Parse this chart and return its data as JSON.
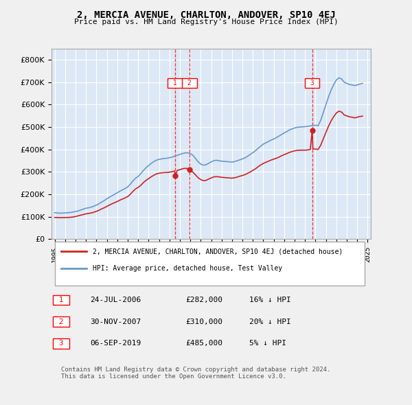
{
  "title": "2, MERCIA AVENUE, CHARLTON, ANDOVER, SP10 4EJ",
  "subtitle": "Price paid vs. HM Land Registry's House Price Index (HPI)",
  "ylabel": "",
  "background_color": "#e8f0f8",
  "plot_bg_color": "#dce8f5",
  "legend_label_red": "2, MERCIA AVENUE, CHARLTON, ANDOVER, SP10 4EJ (detached house)",
  "legend_label_blue": "HPI: Average price, detached house, Test Valley",
  "transactions": [
    {
      "num": 1,
      "date": "24-JUL-2006",
      "price": "£282,000",
      "hpi": "16% ↓ HPI",
      "year": 2006.56
    },
    {
      "num": 2,
      "date": "30-NOV-2007",
      "price": "£310,000",
      "hpi": "20% ↓ HPI",
      "year": 2007.92
    },
    {
      "num": 3,
      "date": "06-SEP-2019",
      "price": "£485,000",
      "hpi": "5% ↓ HPI",
      "year": 2019.68
    }
  ],
  "transaction_prices": [
    282000,
    310000,
    485000
  ],
  "footer": "Contains HM Land Registry data © Crown copyright and database right 2024.\nThis data is licensed under the Open Government Licence v3.0.",
  "ylim": [
    0,
    850000
  ],
  "yticks": [
    0,
    100000,
    200000,
    300000,
    400000,
    500000,
    600000,
    700000,
    800000
  ],
  "hpi_blue": {
    "years": [
      1995.0,
      1995.25,
      1995.5,
      1995.75,
      1996.0,
      1996.25,
      1996.5,
      1996.75,
      1997.0,
      1997.25,
      1997.5,
      1997.75,
      1998.0,
      1998.25,
      1998.5,
      1998.75,
      1999.0,
      1999.25,
      1999.5,
      1999.75,
      2000.0,
      2000.25,
      2000.5,
      2000.75,
      2001.0,
      2001.25,
      2001.5,
      2001.75,
      2002.0,
      2002.25,
      2002.5,
      2002.75,
      2003.0,
      2003.25,
      2003.5,
      2003.75,
      2004.0,
      2004.25,
      2004.5,
      2004.75,
      2005.0,
      2005.25,
      2005.5,
      2005.75,
      2006.0,
      2006.25,
      2006.5,
      2006.75,
      2007.0,
      2007.25,
      2007.5,
      2007.75,
      2008.0,
      2008.25,
      2008.5,
      2008.75,
      2009.0,
      2009.25,
      2009.5,
      2009.75,
      2010.0,
      2010.25,
      2010.5,
      2010.75,
      2011.0,
      2011.25,
      2011.5,
      2011.75,
      2012.0,
      2012.25,
      2012.5,
      2012.75,
      2013.0,
      2013.25,
      2013.5,
      2013.75,
      2014.0,
      2014.25,
      2014.5,
      2014.75,
      2015.0,
      2015.25,
      2015.5,
      2015.75,
      2016.0,
      2016.25,
      2016.5,
      2016.75,
      2017.0,
      2017.25,
      2017.5,
      2017.75,
      2018.0,
      2018.25,
      2018.5,
      2018.75,
      2019.0,
      2019.25,
      2019.5,
      2019.75,
      2020.0,
      2020.25,
      2020.5,
      2020.75,
      2021.0,
      2021.25,
      2021.5,
      2021.75,
      2022.0,
      2022.25,
      2022.5,
      2022.75,
      2023.0,
      2023.25,
      2023.5,
      2023.75,
      2024.0,
      2024.25,
      2024.5
    ],
    "values": [
      118000,
      117000,
      116000,
      116500,
      117000,
      118000,
      119000,
      121000,
      123000,
      126000,
      130000,
      134000,
      138000,
      140000,
      143000,
      147000,
      152000,
      158000,
      165000,
      172000,
      180000,
      187000,
      194000,
      200000,
      207000,
      214000,
      220000,
      226000,
      233000,
      245000,
      260000,
      272000,
      280000,
      292000,
      306000,
      318000,
      328000,
      338000,
      346000,
      352000,
      356000,
      358000,
      360000,
      361000,
      363000,
      366000,
      370000,
      374000,
      378000,
      382000,
      385000,
      385000,
      382000,
      374000,
      360000,
      345000,
      335000,
      330000,
      332000,
      338000,
      345000,
      350000,
      352000,
      350000,
      348000,
      347000,
      346000,
      345000,
      344000,
      346000,
      350000,
      354000,
      358000,
      363000,
      370000,
      378000,
      386000,
      395000,
      405000,
      415000,
      424000,
      430000,
      436000,
      442000,
      447000,
      453000,
      460000,
      467000,
      474000,
      480000,
      487000,
      492000,
      496000,
      499000,
      500000,
      501000,
      502000,
      503000,
      505000,
      507000,
      508000,
      506000,
      530000,
      565000,
      600000,
      635000,
      665000,
      690000,
      710000,
      720000,
      715000,
      700000,
      695000,
      690000,
      688000,
      685000,
      688000,
      692000,
      695000
    ]
  },
  "hpi_red": {
    "years": [
      1995.0,
      1995.25,
      1995.5,
      1995.75,
      1996.0,
      1996.25,
      1996.5,
      1996.75,
      1997.0,
      1997.25,
      1997.5,
      1997.75,
      1998.0,
      1998.25,
      1998.5,
      1998.75,
      1999.0,
      1999.25,
      1999.5,
      1999.75,
      2000.0,
      2000.25,
      2000.5,
      2000.75,
      2001.0,
      2001.25,
      2001.5,
      2001.75,
      2002.0,
      2002.25,
      2002.5,
      2002.75,
      2003.0,
      2003.25,
      2003.5,
      2003.75,
      2004.0,
      2004.25,
      2004.5,
      2004.75,
      2005.0,
      2005.25,
      2005.5,
      2005.75,
      2006.0,
      2006.25,
      2006.5,
      2006.56,
      2006.75,
      2007.0,
      2007.25,
      2007.5,
      2007.75,
      2007.92,
      2008.0,
      2008.25,
      2008.5,
      2008.75,
      2009.0,
      2009.25,
      2009.5,
      2009.75,
      2010.0,
      2010.25,
      2010.5,
      2010.75,
      2011.0,
      2011.25,
      2011.5,
      2011.75,
      2012.0,
      2012.25,
      2012.5,
      2012.75,
      2013.0,
      2013.25,
      2013.5,
      2013.75,
      2014.0,
      2014.25,
      2014.5,
      2014.75,
      2015.0,
      2015.25,
      2015.5,
      2015.75,
      2016.0,
      2016.25,
      2016.5,
      2016.75,
      2017.0,
      2017.25,
      2017.5,
      2017.75,
      2018.0,
      2018.25,
      2018.5,
      2018.75,
      2019.0,
      2019.25,
      2019.5,
      2019.68,
      2019.75,
      2020.0,
      2020.25,
      2020.5,
      2020.75,
      2021.0,
      2021.25,
      2021.5,
      2021.75,
      2022.0,
      2022.25,
      2022.5,
      2022.75,
      2023.0,
      2023.25,
      2023.5,
      2023.75,
      2024.0,
      2024.25,
      2024.5
    ],
    "values": [
      97000,
      96500,
      96000,
      96000,
      96500,
      97000,
      97500,
      99000,
      101000,
      104000,
      107000,
      110000,
      113000,
      115000,
      117000,
      120000,
      124000,
      129000,
      135000,
      140000,
      146000,
      152000,
      158000,
      163000,
      168000,
      174000,
      179000,
      184000,
      190000,
      200000,
      213000,
      224000,
      231000,
      240000,
      252000,
      262000,
      270000,
      278000,
      285000,
      291000,
      294000,
      296000,
      297000,
      297500,
      299000,
      301000,
      304000,
      282000,
      307000,
      310000,
      314000,
      316000,
      315000,
      310000,
      307000,
      299000,
      287000,
      274000,
      266000,
      261000,
      262000,
      268000,
      273000,
      278000,
      279000,
      278000,
      276000,
      275000,
      274000,
      273000,
      272000,
      274000,
      277000,
      281000,
      284000,
      288000,
      294000,
      300000,
      307000,
      314000,
      323000,
      331000,
      338000,
      343000,
      348000,
      353000,
      357000,
      361000,
      366000,
      372000,
      377000,
      382000,
      387000,
      391000,
      394000,
      396000,
      397000,
      397000,
      397000,
      398000,
      400000,
      485000,
      402000,
      402000,
      400000,
      419000,
      448000,
      476000,
      504000,
      528000,
      547000,
      563000,
      571000,
      567000,
      554000,
      550000,
      546000,
      544000,
      541000,
      544000,
      547000,
      549000
    ]
  }
}
